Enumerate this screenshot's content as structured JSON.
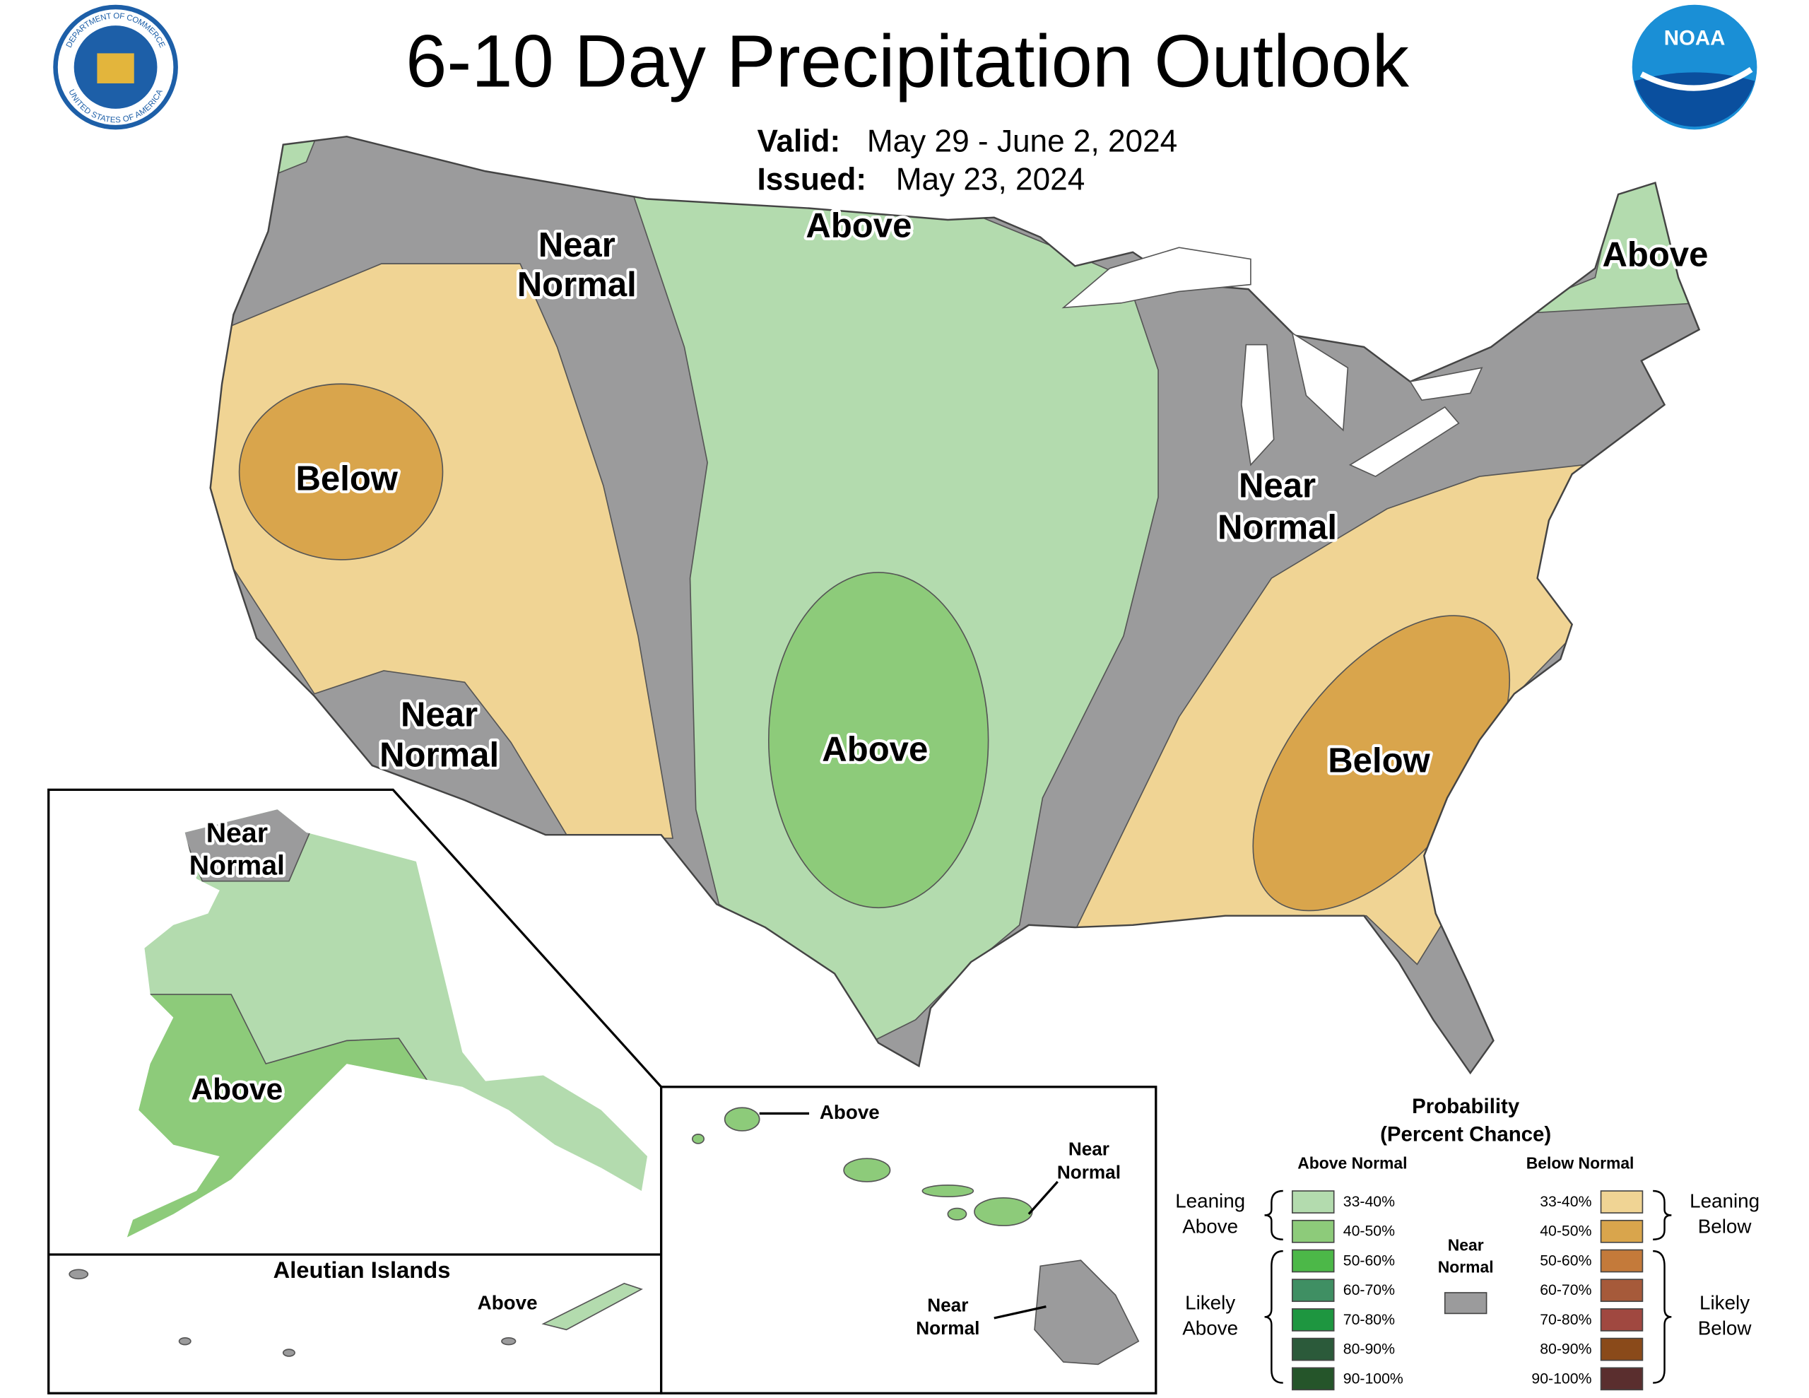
{
  "header": {
    "title": "6-10 Day Precipitation Outlook",
    "valid_label": "Valid:",
    "valid_dates": "May 29 - June 2, 2024",
    "issued_label": "Issued:",
    "issued_date": "May 23, 2024"
  },
  "logos": {
    "commerce_top": "DEPARTMENT OF COMMERCE",
    "commerce_bottom": "UNITED STATES OF AMERICA",
    "noaa": "NOAA"
  },
  "map_labels": {
    "conus": [
      [
        "Near",
        "Normal"
      ],
      [
        "Above"
      ],
      [
        "Above"
      ],
      [
        "Below"
      ],
      [
        "Near",
        "Normal"
      ],
      [
        "Near",
        "Normal"
      ],
      [
        "Above"
      ],
      [
        "Below"
      ]
    ],
    "alaska": [
      [
        "Near",
        "Normal"
      ],
      [
        "Above"
      ]
    ],
    "aleutian_title": "Aleutian Islands",
    "aleutian": [
      [
        "Above"
      ]
    ],
    "hawaii": [
      [
        "Above"
      ],
      [
        "Near",
        "Normal"
      ],
      [
        "Near",
        "Normal"
      ]
    ]
  },
  "legend": {
    "title": [
      "Probability",
      "(Percent Chance)"
    ],
    "above_header": "Above Normal",
    "below_header": "Below Normal",
    "above": [
      {
        "label": "33-40%",
        "color": "#b3dbae"
      },
      {
        "label": "40-50%",
        "color": "#8dcb7a"
      },
      {
        "label": "50-60%",
        "color": "#4cb848"
      },
      {
        "label": "60-70%",
        "color": "#3f8f63"
      },
      {
        "label": "70-80%",
        "color": "#1e9640"
      },
      {
        "label": "80-90%",
        "color": "#2b5a3a"
      },
      {
        "label": "90-100%",
        "color": "#25552a"
      }
    ],
    "below": [
      {
        "label": "33-40%",
        "color": "#f0d494"
      },
      {
        "label": "40-50%",
        "color": "#d9a54c"
      },
      {
        "label": "50-60%",
        "color": "#c47a3a"
      },
      {
        "label": "60-70%",
        "color": "#a65a3a"
      },
      {
        "label": "70-80%",
        "color": "#a04840"
      },
      {
        "label": "80-90%",
        "color": "#8a4a1a"
      },
      {
        "label": "90-100%",
        "color": "#5a2e2e"
      }
    ],
    "near_normal": {
      "lines": [
        "Near",
        "Normal"
      ],
      "color": "#9b9b9c"
    },
    "leaning_above": [
      "Leaning",
      "Above"
    ],
    "likely_above": [
      "Likely",
      "Above"
    ],
    "leaning_below": [
      "Leaning",
      "Below"
    ],
    "likely_below": [
      "Likely",
      "Below"
    ]
  }
}
